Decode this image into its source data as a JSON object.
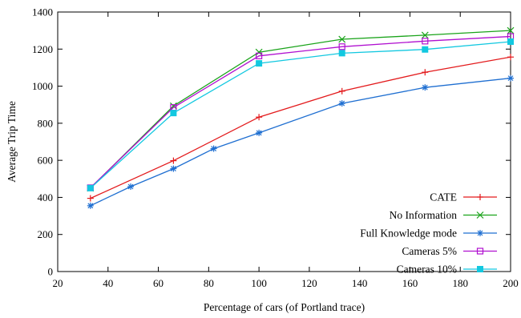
{
  "chart_data": {
    "type": "line",
    "title": "",
    "xlabel": "Percentage of cars (of Portland trace)",
    "ylabel": "Average Trip Time",
    "xlim": [
      20,
      200
    ],
    "ylim": [
      0,
      1400
    ],
    "xticks": [
      20,
      40,
      60,
      80,
      100,
      120,
      140,
      160,
      180,
      200
    ],
    "yticks": [
      0,
      200,
      400,
      600,
      800,
      1000,
      1200,
      1400
    ],
    "grid": false,
    "legend_position": "bottom-right",
    "series": [
      {
        "name": "CATE",
        "color": "#e31a1c",
        "marker": "plus",
        "x": [
          33,
          66,
          100,
          133,
          166,
          200
        ],
        "y": [
          395,
          598,
          833,
          973,
          1075,
          1157
        ]
      },
      {
        "name": "No Information",
        "color": "#1aa31a",
        "marker": "x",
        "x": [
          33,
          66,
          100,
          133,
          166,
          200
        ],
        "y": [
          450,
          893,
          1183,
          1253,
          1275,
          1300
        ]
      },
      {
        "name": "Full Knowledge mode",
        "color": "#1f6fd1",
        "marker": "star",
        "x": [
          33,
          49,
          66,
          82,
          100,
          133,
          166,
          200
        ],
        "y": [
          355,
          458,
          555,
          663,
          748,
          907,
          993,
          1043
        ]
      },
      {
        "name": "Cameras 5%",
        "color": "#b010d0",
        "marker": "square-open",
        "x": [
          33,
          66,
          100,
          133,
          166,
          200
        ],
        "y": [
          452,
          885,
          1163,
          1213,
          1243,
          1268
        ]
      },
      {
        "name": "Cameras 10%",
        "color": "#12c8e0",
        "marker": "square-filled",
        "x": [
          33,
          66,
          100,
          133,
          166,
          200
        ],
        "y": [
          450,
          855,
          1123,
          1178,
          1198,
          1240
        ]
      }
    ]
  }
}
